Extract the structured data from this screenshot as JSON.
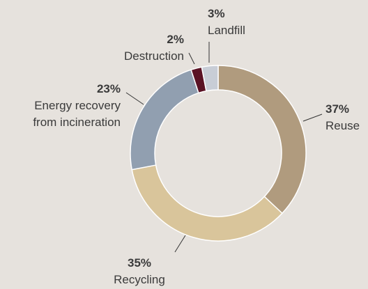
{
  "chart_data": {
    "type": "pie",
    "categories": [
      "Reuse",
      "Recycling",
      "Energy recovery from incineration",
      "Destruction",
      "Landfill"
    ],
    "values": [
      37,
      35,
      23,
      2,
      3
    ],
    "value_labels": [
      "37%",
      "35%",
      "23%",
      "2%",
      "3%"
    ],
    "colors": [
      "#b09b7e",
      "#d9c59b",
      "#919fb0",
      "#5a1224",
      "#c8cdd6"
    ]
  }
}
